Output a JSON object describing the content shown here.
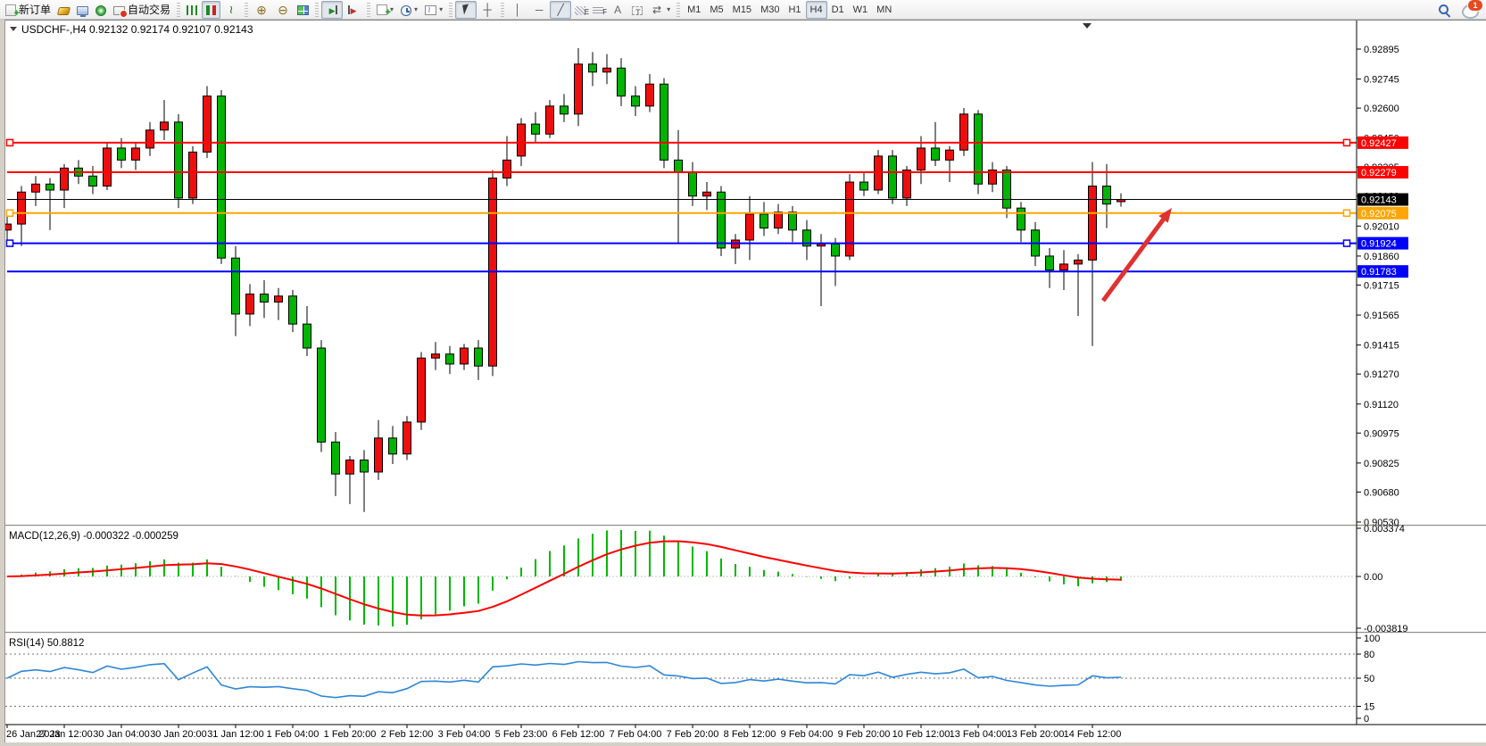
{
  "toolbar": {
    "notification_badge": "1",
    "groups": [
      {
        "name": "trade",
        "items": [
          {
            "name": "new-order-button",
            "icon": "new-order",
            "label": "新订单"
          },
          {
            "name": "gold-button",
            "icon": "gold"
          },
          {
            "name": "market-watch-button",
            "icon": "monitor"
          },
          {
            "name": "signals-button",
            "icon": "signal"
          },
          {
            "name": "autotrading-button",
            "icon": "autotrade",
            "label": "自动交易"
          }
        ]
      },
      {
        "name": "chart-type",
        "items": [
          {
            "name": "bar-chart-button",
            "icon": "bars"
          },
          {
            "name": "candlestick-button",
            "icon": "candles",
            "active": true
          },
          {
            "name": "line-chart-button",
            "icon": "linechart"
          }
        ]
      },
      {
        "name": "zoom",
        "items": [
          {
            "name": "zoom-in-button",
            "icon": "zoom-in"
          },
          {
            "name": "zoom-out-button",
            "icon": "zoom-out"
          },
          {
            "name": "tile-windows-button",
            "icon": "tile"
          }
        ]
      },
      {
        "name": "scroll",
        "items": [
          {
            "name": "auto-scroll-button",
            "icon": "auto-scroll",
            "active": true
          },
          {
            "name": "chart-shift-button",
            "icon": "chart-shift"
          }
        ]
      },
      {
        "name": "new-objects",
        "items": [
          {
            "name": "new-chart-button",
            "icon": "new-chart",
            "dropdown": true
          },
          {
            "name": "periods-button",
            "icon": "clock",
            "dropdown": true
          },
          {
            "name": "templates-button",
            "icon": "template",
            "dropdown": true
          }
        ]
      },
      {
        "name": "pointer",
        "items": [
          {
            "name": "cursor-button",
            "icon": "cursor",
            "active": true
          },
          {
            "name": "crosshair-button",
            "icon": "crosshair"
          }
        ]
      },
      {
        "name": "objects",
        "items": [
          {
            "name": "vertical-line-button",
            "icon": "vline"
          },
          {
            "name": "horizontal-line-button",
            "icon": "hline"
          },
          {
            "name": "trendline-button",
            "icon": "trendline",
            "active": true
          },
          {
            "name": "equidistant-channel-button",
            "icon": "channel"
          },
          {
            "name": "fibonacci-button",
            "icon": "fibo"
          },
          {
            "name": "text-button",
            "icon": "text"
          },
          {
            "name": "text-label-button",
            "icon": "text-label"
          },
          {
            "name": "arrows-button",
            "icon": "arrows",
            "dropdown": true
          }
        ]
      },
      {
        "name": "timeframes",
        "items": [
          {
            "name": "tf-m1",
            "label": "M1"
          },
          {
            "name": "tf-m5",
            "label": "M5"
          },
          {
            "name": "tf-m15",
            "label": "M15"
          },
          {
            "name": "tf-m30",
            "label": "M30"
          },
          {
            "name": "tf-h1",
            "label": "H1"
          },
          {
            "name": "tf-h4",
            "label": "H4",
            "active": true
          },
          {
            "name": "tf-d1",
            "label": "D1"
          },
          {
            "name": "tf-w1",
            "label": "W1"
          },
          {
            "name": "tf-mn",
            "label": "MN"
          }
        ]
      }
    ]
  },
  "chart_data": {
    "type": "candlestick",
    "symbol_period": "USDCHF-,H4",
    "header_text": "USDCHF-,H4  0.92132 0.92174 0.92107 0.92143",
    "current_bar": {
      "open": "0.92132",
      "high": "0.92174",
      "low": "0.92107",
      "close": "0.92143"
    },
    "bull_color": "#EE0E0E",
    "bear_color": "#00B400",
    "outline_color": "#000000",
    "price_axis_ticks": [
      0.92895,
      0.92745,
      0.926,
      0.9245,
      0.92305,
      0.9216,
      0.9201,
      0.9186,
      0.91715,
      0.91565,
      0.91415,
      0.9127,
      0.9112,
      0.90975,
      0.90825,
      0.9068,
      0.9053
    ],
    "price_lines": [
      {
        "value": 0.92427,
        "tag": "0.92427",
        "color": "#FF0000",
        "width": 2,
        "handles": true
      },
      {
        "value": 0.92279,
        "tag": "0.92279",
        "color": "#FF0000",
        "width": 2,
        "handles": false
      },
      {
        "value": 0.92143,
        "tag": "0.92143",
        "color": "#000000",
        "width": 1,
        "handles": false,
        "role": "current-price"
      },
      {
        "value": 0.92075,
        "tag": "0.92075",
        "color": "#FFA500",
        "width": 2,
        "handles": true
      },
      {
        "value": 0.91924,
        "tag": "0.91924",
        "color": "#0000FF",
        "width": 2,
        "handles": true
      },
      {
        "value": 0.91783,
        "tag": "0.91783",
        "color": "#0000FF",
        "width": 2,
        "handles": false
      }
    ],
    "x_labels": [
      "26 Jan 2023",
      "27 Jan 12:00",
      "30 Jan 04:00",
      "30 Jan 20:00",
      "31 Jan 12:00",
      "1 Feb 04:00",
      "1 Feb 20:00",
      "2 Feb 12:00",
      "3 Feb 04:00",
      "5 Feb 23:00",
      "6 Feb 12:00",
      "7 Feb 04:00",
      "7 Feb 20:00",
      "8 Feb 12:00",
      "9 Feb 04:00",
      "9 Feb 20:00",
      "10 Feb 12:00",
      "13 Feb 04:00",
      "13 Feb 20:00",
      "14 Feb 12:00"
    ],
    "candles": [
      [
        0.9199,
        0.9206,
        0.9193,
        0.9202
      ],
      [
        0.9202,
        0.9221,
        0.9191,
        0.9218
      ],
      [
        0.9218,
        0.9226,
        0.9211,
        0.9222
      ],
      [
        0.9222,
        0.9225,
        0.9199,
        0.9219
      ],
      [
        0.9219,
        0.9232,
        0.921,
        0.923
      ],
      [
        0.923,
        0.9234,
        0.9222,
        0.9226
      ],
      [
        0.9226,
        0.9231,
        0.9217,
        0.9221
      ],
      [
        0.9221,
        0.9243,
        0.9219,
        0.924
      ],
      [
        0.924,
        0.9245,
        0.923,
        0.9234
      ],
      [
        0.9234,
        0.9243,
        0.9229,
        0.924
      ],
      [
        0.924,
        0.9253,
        0.9236,
        0.9249
      ],
      [
        0.9249,
        0.9264,
        0.9244,
        0.9253
      ],
      [
        0.9253,
        0.9257,
        0.921,
        0.9215
      ],
      [
        0.9215,
        0.9241,
        0.9212,
        0.9238
      ],
      [
        0.9238,
        0.9271,
        0.9235,
        0.9266
      ],
      [
        0.9266,
        0.9269,
        0.9182,
        0.9185
      ],
      [
        0.9185,
        0.9191,
        0.9146,
        0.9157
      ],
      [
        0.9157,
        0.9172,
        0.9151,
        0.9167
      ],
      [
        0.9167,
        0.9174,
        0.9155,
        0.9163
      ],
      [
        0.9163,
        0.917,
        0.9154,
        0.9166
      ],
      [
        0.9166,
        0.9169,
        0.9148,
        0.9152
      ],
      [
        0.9152,
        0.9161,
        0.9136,
        0.914
      ],
      [
        0.914,
        0.9144,
        0.9088,
        0.9093
      ],
      [
        0.9093,
        0.9098,
        0.9066,
        0.9077
      ],
      [
        0.9077,
        0.9086,
        0.9062,
        0.9084
      ],
      [
        0.9084,
        0.9089,
        0.9058,
        0.9078
      ],
      [
        0.9078,
        0.9104,
        0.9074,
        0.9095
      ],
      [
        0.9095,
        0.9101,
        0.9082,
        0.9087
      ],
      [
        0.9087,
        0.9106,
        0.9084,
        0.9103
      ],
      [
        0.9103,
        0.9138,
        0.9099,
        0.9135
      ],
      [
        0.9135,
        0.9143,
        0.9129,
        0.9137
      ],
      [
        0.9137,
        0.9141,
        0.9127,
        0.9132
      ],
      [
        0.9132,
        0.9142,
        0.9129,
        0.914
      ],
      [
        0.914,
        0.9144,
        0.9124,
        0.9131
      ],
      [
        0.9131,
        0.9229,
        0.9126,
        0.9225
      ],
      [
        0.9225,
        0.9246,
        0.9221,
        0.9234
      ],
      [
        0.9236,
        0.9255,
        0.9231,
        0.9252
      ],
      [
        0.9252,
        0.9258,
        0.9243,
        0.9247
      ],
      [
        0.9247,
        0.9264,
        0.9245,
        0.9261
      ],
      [
        0.9261,
        0.9267,
        0.9253,
        0.9257
      ],
      [
        0.9257,
        0.929,
        0.9251,
        0.9282
      ],
      [
        0.9282,
        0.9288,
        0.9271,
        0.9278
      ],
      [
        0.9278,
        0.9287,
        0.9272,
        0.928
      ],
      [
        0.928,
        0.9285,
        0.9261,
        0.9266
      ],
      [
        0.9266,
        0.9271,
        0.9256,
        0.9261
      ],
      [
        0.9261,
        0.9277,
        0.9258,
        0.9272
      ],
      [
        0.9272,
        0.9275,
        0.923,
        0.9234
      ],
      [
        0.9234,
        0.9249,
        0.9192,
        0.9228
      ],
      [
        0.9228,
        0.9233,
        0.9211,
        0.9216
      ],
      [
        0.9216,
        0.9223,
        0.9209,
        0.9218
      ],
      [
        0.9218,
        0.9221,
        0.9186,
        0.919
      ],
      [
        0.919,
        0.9197,
        0.9182,
        0.9194
      ],
      [
        0.9194,
        0.9216,
        0.9184,
        0.9207
      ],
      [
        0.9207,
        0.9213,
        0.9196,
        0.92
      ],
      [
        0.92,
        0.9212,
        0.9197,
        0.9208
      ],
      [
        0.9208,
        0.9211,
        0.9193,
        0.9199
      ],
      [
        0.9199,
        0.9204,
        0.9184,
        0.9191
      ],
      [
        0.9191,
        0.9197,
        0.9161,
        0.9192
      ],
      [
        0.9192,
        0.9195,
        0.9171,
        0.9186
      ],
      [
        0.9186,
        0.9227,
        0.9184,
        0.9223
      ],
      [
        0.9223,
        0.9228,
        0.9216,
        0.9219
      ],
      [
        0.9219,
        0.9239,
        0.9217,
        0.9236
      ],
      [
        0.9236,
        0.9239,
        0.9212,
        0.9215
      ],
      [
        0.9215,
        0.9231,
        0.9211,
        0.9229
      ],
      [
        0.9229,
        0.9246,
        0.9222,
        0.924
      ],
      [
        0.924,
        0.9253,
        0.9231,
        0.9234
      ],
      [
        0.9234,
        0.9241,
        0.9223,
        0.9239
      ],
      [
        0.9239,
        0.926,
        0.9236,
        0.9257
      ],
      [
        0.9257,
        0.9259,
        0.9217,
        0.9222
      ],
      [
        0.9222,
        0.9233,
        0.9218,
        0.9229
      ],
      [
        0.9229,
        0.9231,
        0.9205,
        0.921
      ],
      [
        0.921,
        0.9213,
        0.9193,
        0.9199
      ],
      [
        0.9199,
        0.9203,
        0.9181,
        0.9186
      ],
      [
        0.9186,
        0.919,
        0.917,
        0.9179
      ],
      [
        0.9179,
        0.9189,
        0.9169,
        0.9182
      ],
      [
        0.9182,
        0.9187,
        0.9156,
        0.9184
      ],
      [
        0.9184,
        0.9233,
        0.9141,
        0.9221
      ],
      [
        0.9221,
        0.9232,
        0.92,
        0.9212
      ],
      [
        0.92132,
        0.92174,
        0.92107,
        0.92143
      ]
    ],
    "indicators": {
      "macd": {
        "label": "MACD(12,26,9) -0.000322 -0.000259",
        "params": [
          12,
          26,
          9
        ],
        "main_value": "-0.000322",
        "signal_value": "-0.000259",
        "axis_ticks": [
          "0.003374",
          "0.00",
          "-0.003819"
        ],
        "hist_color": "#00B800",
        "signal_color": "#FF0000"
      },
      "rsi": {
        "label": "RSI(14) 50.8812",
        "period": 14,
        "value": "50.8812",
        "axis_ticks": [
          "100",
          "80",
          "50",
          "15",
          "0"
        ],
        "levels": [
          80,
          50,
          15
        ],
        "line_color": "#2E86D8"
      }
    },
    "annotations": {
      "arrow": {
        "from": [
          1230,
          315
        ],
        "to": [
          1307,
          211
        ],
        "color": "#E03131",
        "width": 5
      }
    }
  }
}
